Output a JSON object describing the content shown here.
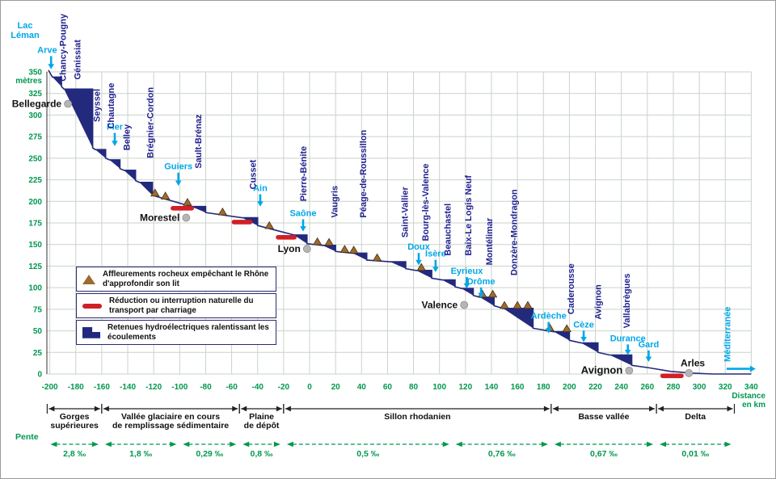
{
  "colors": {
    "axis_green": "#00984f",
    "grid": "#c9d3c9",
    "tributary_cyan": "#00a7e8",
    "dam_navy": "#1f1f8f",
    "profile_navy": "#232a7d",
    "rock_brown": "#9c6b2f",
    "rock_brown_edge": "#4a3010",
    "bar_red": "#d11f26",
    "dot_gray": "#b5b5b5",
    "slope_green": "#00984f"
  },
  "labels": {
    "lake": [
      "Lac",
      "Léman"
    ],
    "sea": "Méditerranée",
    "y_axis": "mètres",
    "x_axis": [
      "Distance",
      "en km"
    ],
    "slope": "Pente"
  },
  "axes": {
    "y_ticks": [
      350,
      325,
      300,
      275,
      250,
      225,
      200,
      175,
      150,
      125,
      100,
      75,
      50,
      25,
      0
    ],
    "x_ticks": [
      -200,
      -180,
      -160,
      -140,
      -120,
      -100,
      -80,
      -60,
      -40,
      -20,
      0,
      20,
      40,
      60,
      80,
      100,
      120,
      140,
      160,
      180,
      200,
      220,
      240,
      260,
      280,
      300,
      320,
      340
    ]
  },
  "chart_data": {
    "type": "area",
    "subtype": "longitudinal-river-profile",
    "x_range": [
      -200,
      340
    ],
    "y_range": [
      0,
      350
    ],
    "profile_start": [
      [
        -201,
        352
      ]
    ],
    "profile_tail": [
      [
        262,
        7
      ],
      [
        278,
        3
      ],
      [
        295,
        1
      ],
      [
        310,
        0
      ],
      [
        340,
        0
      ]
    ],
    "dams": [
      {
        "name": "Chancy-Pougny",
        "pool_start_km": -198,
        "dam_km": -191,
        "pool_elev_m": 344,
        "tailwater_elev_m": 333,
        "label_km": -190,
        "label_m": 339
      },
      {
        "name": "Génissiat",
        "pool_start_km": -189,
        "dam_km": -167,
        "pool_elev_m": 330,
        "tailwater_elev_m": 262,
        "label_km": -179,
        "label_m": 341
      },
      {
        "name": "Seyssel",
        "pool_start_km": -165,
        "dam_km": -157,
        "pool_elev_m": 260,
        "tailwater_elev_m": 250,
        "label_km": -164,
        "label_m": 292
      },
      {
        "name": "Chautagne",
        "pool_start_km": -154,
        "dam_km": -146,
        "pool_elev_m": 248,
        "tailwater_elev_m": 238,
        "label_km": -153,
        "label_m": 284
      },
      {
        "name": "Belley",
        "pool_start_km": -143,
        "dam_km": -134,
        "pool_elev_m": 236,
        "tailwater_elev_m": 224,
        "label_km": -141,
        "label_m": 259
      },
      {
        "name": "Brégnier-Cordon",
        "pool_start_km": -131,
        "dam_km": -121,
        "pool_elev_m": 222,
        "tailwater_elev_m": 207,
        "label_km": -123,
        "label_m": 250
      },
      {
        "name": "Sault-Brénaz",
        "pool_start_km": -91,
        "dam_km": -80,
        "pool_elev_m": 194,
        "tailwater_elev_m": 187,
        "label_km": -86,
        "label_m": 238
      },
      {
        "name": "Cusset",
        "pool_start_km": -52,
        "dam_km": -40,
        "pool_elev_m": 181,
        "tailwater_elev_m": 172,
        "label_km": -44,
        "label_m": 214
      },
      {
        "name": "Pierre-Bénite",
        "pool_start_km": -12,
        "dam_km": -2,
        "pool_elev_m": 161,
        "tailwater_elev_m": 151,
        "label_km": -5,
        "label_m": 200
      },
      {
        "name": "Vaugris",
        "pool_start_km": 10,
        "dam_km": 20,
        "pool_elev_m": 149,
        "tailwater_elev_m": 142,
        "label_km": 19,
        "label_m": 181
      },
      {
        "name": "Péage-de-Roussillon",
        "pool_start_km": 33,
        "dam_km": 44,
        "pool_elev_m": 140,
        "tailwater_elev_m": 132,
        "label_km": 41,
        "label_m": 181
      },
      {
        "name": "Saint-Vallier",
        "pool_start_km": 62,
        "dam_km": 74,
        "pool_elev_m": 130,
        "tailwater_elev_m": 122,
        "label_km": 73,
        "label_m": 158
      },
      {
        "name": "Bourg-lès-Valence",
        "pool_start_km": 82,
        "dam_km": 94,
        "pool_elev_m": 120,
        "tailwater_elev_m": 111,
        "label_km": 89,
        "label_m": 154
      },
      {
        "name": "Beauchastel",
        "pool_start_km": 102,
        "dam_km": 112,
        "pool_elev_m": 109,
        "tailwater_elev_m": 101,
        "label_km": 106,
        "label_m": 137
      },
      {
        "name": "Baix-Le Logis Neuf",
        "pool_start_km": 117,
        "dam_km": 126,
        "pool_elev_m": 99,
        "tailwater_elev_m": 91,
        "label_km": 122,
        "label_m": 137
      },
      {
        "name": "Montélimar",
        "pool_start_km": 131,
        "dam_km": 142,
        "pool_elev_m": 89,
        "tailwater_elev_m": 79,
        "label_km": 138,
        "label_m": 126
      },
      {
        "name": "Donzère-Mondragon",
        "pool_start_km": 149,
        "dam_km": 172,
        "pool_elev_m": 76,
        "tailwater_elev_m": 53,
        "label_km": 157,
        "label_m": 114
      },
      {
        "name": "Caderousse",
        "pool_start_km": 188,
        "dam_km": 200,
        "pool_elev_m": 49,
        "tailwater_elev_m": 39,
        "label_km": 201,
        "label_m": 69
      },
      {
        "name": "Avignon",
        "pool_start_km": 209,
        "dam_km": 222,
        "pool_elev_m": 36,
        "tailwater_elev_m": 25,
        "label_km": 222,
        "label_m": 63
      },
      {
        "name": "Vallabrègues",
        "pool_start_km": 231,
        "dam_km": 248,
        "pool_elev_m": 22,
        "tailwater_elev_m": 10,
        "label_km": 244,
        "label_m": 53
      }
    ],
    "tributaries": [
      {
        "name": "Arve",
        "km": -199,
        "label_km": -202,
        "label_m": 372,
        "tip_m": 353
      },
      {
        "name": "Fier",
        "km": -150,
        "label_m": 283,
        "tip_m": 264
      },
      {
        "name": "Guiers",
        "km": -101,
        "label_m": 237,
        "tip_m": 218
      },
      {
        "name": "Ain",
        "km": -38,
        "label_m": 212,
        "tip_m": 194
      },
      {
        "name": "Saône",
        "km": -5,
        "label_m": 183,
        "tip_m": 165
      },
      {
        "name": "Doux",
        "km": 84,
        "label_m": 144,
        "tip_m": 126
      },
      {
        "name": "Isère",
        "km": 97,
        "label_m": 136,
        "tip_m": 118
      },
      {
        "name": "Eyrieux",
        "km": 121,
        "label_m": 116,
        "tip_m": 99
      },
      {
        "name": "Drôme",
        "km": 132,
        "label_m": 104,
        "tip_m": 88
      },
      {
        "name": "Ardèche",
        "km": 184,
        "label_m": 64,
        "tip_m": 47
      },
      {
        "name": "Cèze",
        "km": 211,
        "label_m": 54,
        "tip_m": 37
      },
      {
        "name": "Durance",
        "km": 245,
        "label_m": 38,
        "tip_m": 22
      },
      {
        "name": "Gard",
        "km": 261,
        "label_m": 31,
        "tip_m": 14
      }
    ],
    "cities": [
      {
        "name": "Bellegarde",
        "dot_km": -186,
        "dot_elev_m": 313,
        "anchor": "end",
        "size": 12
      },
      {
        "name": "Morestel",
        "dot_km": -95,
        "dot_elev_m": 181,
        "anchor": "end",
        "size": 12
      },
      {
        "name": "Lyon",
        "dot_km": -2,
        "dot_elev_m": 145,
        "anchor": "end",
        "size": 12
      },
      {
        "name": "Valence",
        "dot_km": 119,
        "dot_elev_m": 80,
        "anchor": "end",
        "size": 12
      },
      {
        "name": "Avignon",
        "dot_km": 246,
        "dot_elev_m": 4,
        "anchor": "end",
        "size": 13
      },
      {
        "name": "Arles",
        "dot_km": 292,
        "dot_elev_m": 1,
        "anchor": "middle",
        "label_km": 295,
        "label_m": 9,
        "size": 12
      }
    ],
    "rock_outcrops_km": [
      -119,
      -111,
      -94,
      -67,
      -31,
      6,
      15,
      27,
      34,
      52,
      86,
      133,
      141,
      150,
      160,
      168,
      185,
      198
    ],
    "bedload_breaks_km": [
      [
        -107,
        -89
      ],
      [
        -60,
        -44
      ],
      [
        -26,
        -10
      ],
      [
        270,
        288
      ]
    ],
    "sections": [
      {
        "lines": [
          "Gorges",
          "supérieures"
        ],
        "from_km": -202,
        "to_km": -160
      },
      {
        "lines": [
          "Vallée glaciaire en cours",
          "de remplissage sédimentaire"
        ],
        "from_km": -160,
        "to_km": -54
      },
      {
        "lines": [
          "Plaine",
          "de dépôt"
        ],
        "from_km": -54,
        "to_km": -20
      },
      {
        "lines": [
          "Sillon rhodanien"
        ],
        "from_km": -20,
        "to_km": 186
      },
      {
        "lines": [
          "Basse vallée"
        ],
        "from_km": 186,
        "to_km": 267
      },
      {
        "lines": [
          "Delta"
        ],
        "from_km": 267,
        "to_km": 327
      }
    ],
    "slopes": [
      {
        "value": "2,8 ‰",
        "from_km": -202,
        "to_km": -160
      },
      {
        "value": "1,8 ‰",
        "from_km": -160,
        "to_km": -100
      },
      {
        "value": "0,29 ‰",
        "from_km": -100,
        "to_km": -54
      },
      {
        "value": "0,8 ‰",
        "from_km": -54,
        "to_km": -20
      },
      {
        "value": "0,5 ‰",
        "from_km": -20,
        "to_km": 110
      },
      {
        "value": "0,76 ‰",
        "from_km": 110,
        "to_km": 186
      },
      {
        "value": "0,67 ‰",
        "from_km": 186,
        "to_km": 267
      },
      {
        "value": "0,01 ‰",
        "from_km": 267,
        "to_km": 327
      }
    ]
  },
  "legend": {
    "items": [
      {
        "icon": "rock-triangle-icon",
        "text": "Affleurements rocheux empêchant le Rhône d'approfondir son lit"
      },
      {
        "icon": "bedload-bar-icon",
        "text": "Réduction ou interruption naturelle du transport par charriage"
      },
      {
        "icon": "reservoir-step-icon",
        "text": "Retenues hydroélectriques ralentissant les écoulements"
      }
    ]
  }
}
